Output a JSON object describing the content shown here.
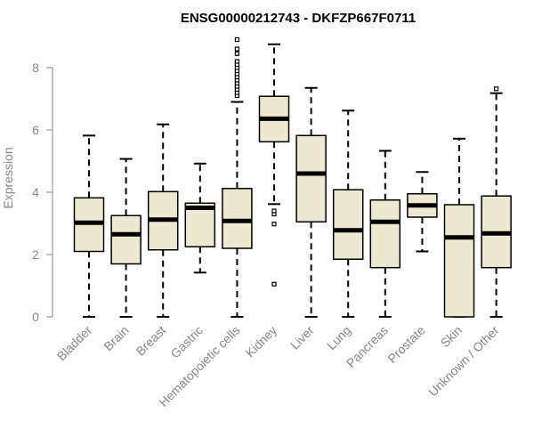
{
  "chart_data": {
    "type": "boxplot",
    "title": "ENSG00000212743 - DKFZP667F0711",
    "xlabel": "",
    "ylabel": "Expression",
    "ylim": [
      0,
      9.3
    ],
    "yticks": [
      0,
      2,
      4,
      6,
      8
    ],
    "ytick_labels": [
      "0",
      "2",
      "4",
      "6",
      "8"
    ],
    "colors": {
      "box_fill": "#EDE8D0",
      "stroke": "#000000",
      "axis": "#888888",
      "title": "#000000"
    },
    "categories": [
      "Bladder",
      "Brain",
      "Breast",
      "Gastric",
      "Hematopoietic cells",
      "Kidney",
      "Liver",
      "Lung",
      "Pancreas",
      "Prostate",
      "Skin",
      "Unknown / Other"
    ],
    "boxes": [
      {
        "label": "Bladder",
        "min": 0.0,
        "q1": 2.1,
        "median": 3.02,
        "q3": 3.82,
        "max": 5.82,
        "outliers": []
      },
      {
        "label": "Brain",
        "min": 0.0,
        "q1": 1.7,
        "median": 2.65,
        "q3": 3.25,
        "max": 5.07,
        "outliers": []
      },
      {
        "label": "Breast",
        "min": 0.0,
        "q1": 2.15,
        "median": 3.12,
        "q3": 4.02,
        "max": 6.18,
        "outliers": []
      },
      {
        "label": "Gastric",
        "min": 1.42,
        "q1": 2.25,
        "median": 3.5,
        "q3": 3.65,
        "max": 4.92,
        "outliers": []
      },
      {
        "label": "Hematopoietic cells",
        "min": 0.0,
        "q1": 2.2,
        "median": 3.08,
        "q3": 4.12,
        "max": 6.9,
        "outliers": [
          7.1,
          7.2,
          7.3,
          7.4,
          7.5,
          7.6,
          7.7,
          7.8,
          7.9,
          8.0,
          8.1,
          8.2,
          8.45,
          8.6,
          8.9
        ]
      },
      {
        "label": "Kidney",
        "min": 3.62,
        "q1": 5.62,
        "median": 6.36,
        "q3": 7.08,
        "max": 8.75,
        "outliers": [
          1.05,
          2.98,
          3.3,
          3.4
        ]
      },
      {
        "label": "Liver",
        "min": 0.0,
        "q1": 3.05,
        "median": 4.6,
        "q3": 5.82,
        "max": 7.35,
        "outliers": []
      },
      {
        "label": "Lung",
        "min": 0.0,
        "q1": 1.85,
        "median": 2.78,
        "q3": 4.08,
        "max": 6.62,
        "outliers": []
      },
      {
        "label": "Pancreas",
        "min": 0.0,
        "q1": 1.58,
        "median": 3.05,
        "q3": 3.75,
        "max": 5.33,
        "outliers": []
      },
      {
        "label": "Prostate",
        "min": 2.1,
        "q1": 3.2,
        "median": 3.58,
        "q3": 3.95,
        "max": 4.65,
        "outliers": []
      },
      {
        "label": "Skin",
        "min": 0.0,
        "q1": 0.0,
        "median": 2.55,
        "q3": 3.6,
        "max": 5.72,
        "outliers": []
      },
      {
        "label": "Unknown / Other",
        "min": 0.0,
        "q1": 1.58,
        "median": 2.68,
        "q3": 3.88,
        "max": 7.18,
        "outliers": [
          7.32
        ]
      }
    ]
  }
}
